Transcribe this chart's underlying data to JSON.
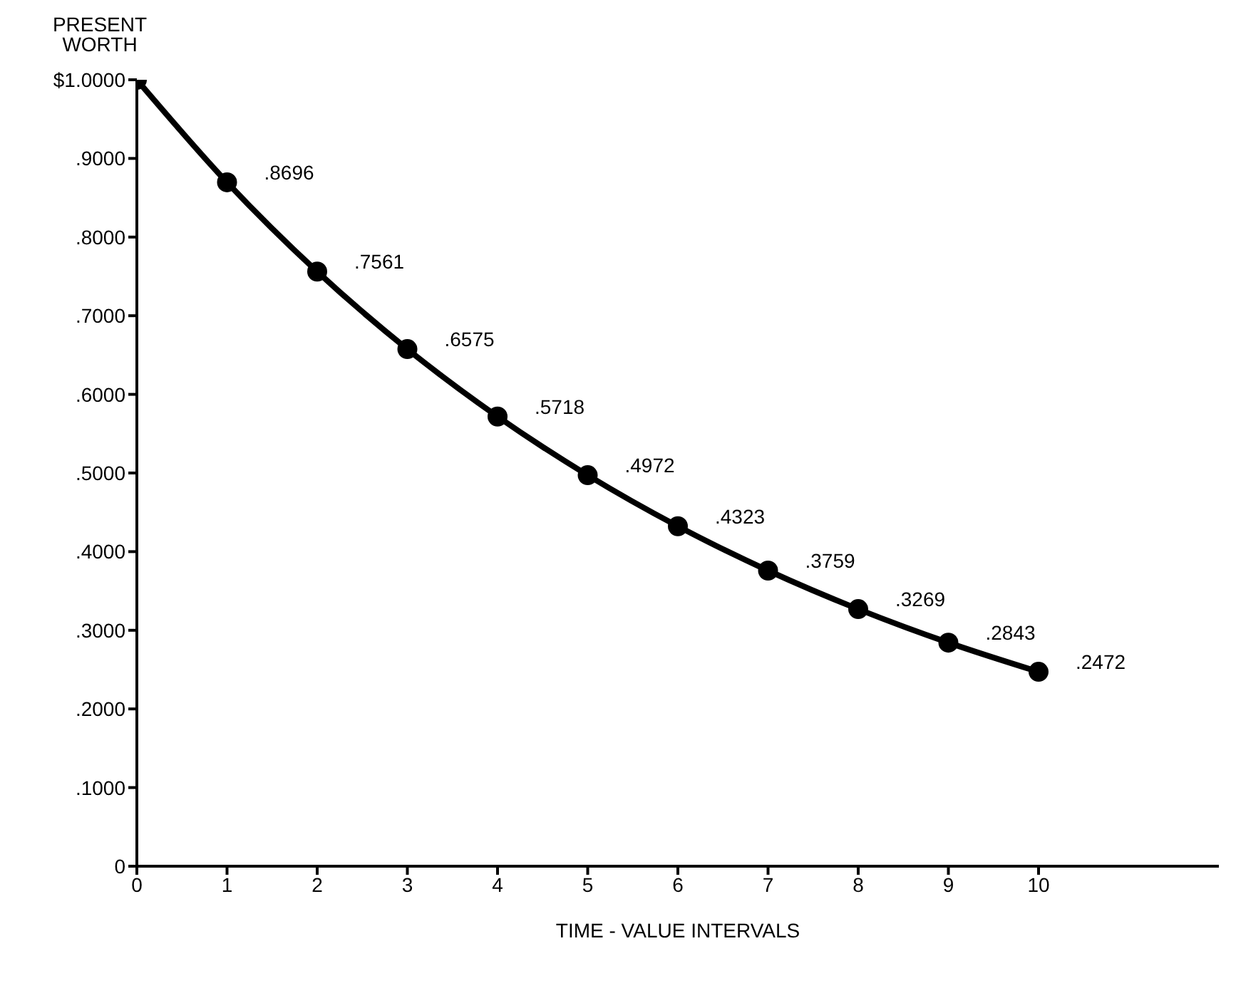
{
  "chart_data": {
    "type": "line",
    "ylabel": "PRESENT WORTH",
    "xlabel": "TIME - VALUE INTERVALS",
    "x": [
      0,
      1,
      2,
      3,
      4,
      5,
      6,
      7,
      8,
      9,
      10
    ],
    "series": [
      {
        "color": "#000000",
        "values": [
          1.0,
          0.8696,
          0.7561,
          0.6575,
          0.5718,
          0.4972,
          0.4323,
          0.3759,
          0.3269,
          0.2843,
          0.2472
        ],
        "value_labels": [
          null,
          ".8696",
          ".7561",
          ".6575",
          ".5718",
          ".4972",
          ".4323",
          ".3759",
          ".3269",
          ".2843",
          ".2472"
        ]
      }
    ],
    "xlim": [
      0,
      12
    ],
    "xticks": [
      0,
      1,
      2,
      3,
      4,
      5,
      6,
      7,
      8,
      9,
      10
    ],
    "ylim": [
      0,
      1
    ],
    "yticks": [
      {
        "value": 0,
        "label": "0"
      },
      {
        "value": 0.1,
        "label": ".1000"
      },
      {
        "value": 0.2,
        "label": ".2000"
      },
      {
        "value": 0.3,
        "label": ".3000"
      },
      {
        "value": 0.4,
        "label": ".4000"
      },
      {
        "value": 0.5,
        "label": ".5000"
      },
      {
        "value": 0.6,
        "label": ".6000"
      },
      {
        "value": 0.7,
        "label": ".7000"
      },
      {
        "value": 0.8,
        "label": ".8000"
      },
      {
        "value": 0.9,
        "label": ".9000"
      },
      {
        "value": 1,
        "label": "$1.0000"
      }
    ],
    "grid": false,
    "legend": false,
    "marker": "circle",
    "line_style": "solid"
  }
}
